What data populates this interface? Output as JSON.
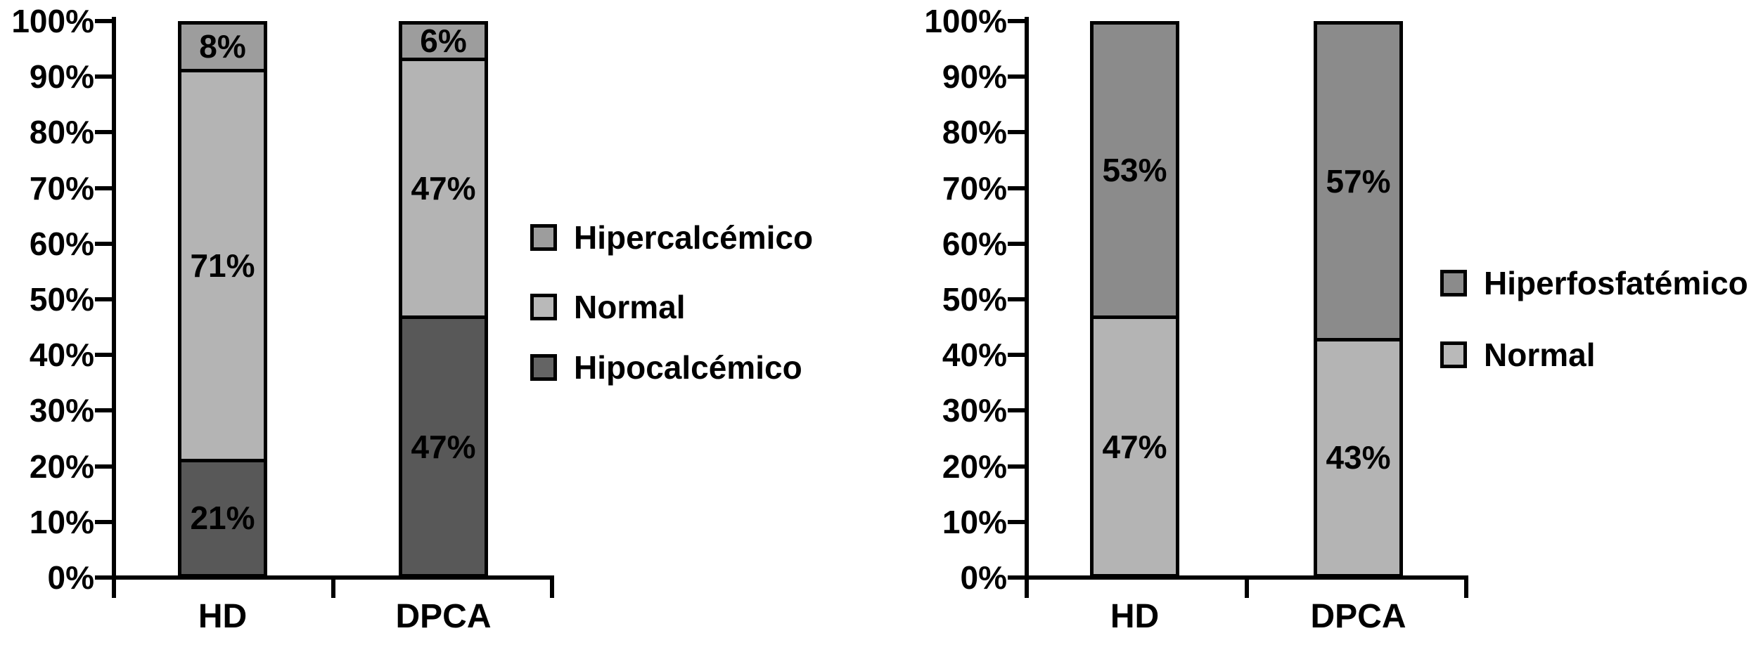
{
  "figure": {
    "background": "#ffffff",
    "description": "Two 100% stacked bar charts comparing HD and DPCA patients"
  },
  "chart_data": [
    {
      "type": "bar",
      "subtype": "stacked-100-percent",
      "title": "",
      "xlabel": "",
      "ylabel": "",
      "categories": [
        "HD",
        "DPCA"
      ],
      "stack_order": "bottom-to-top",
      "series": [
        {
          "name": "Hipocalcémico",
          "color": "#585858",
          "values": [
            21,
            47
          ],
          "labels": [
            "21%",
            "47%"
          ]
        },
        {
          "name": "Normal",
          "color": "#b4b4b4",
          "values": [
            71,
            47
          ],
          "labels": [
            "71%",
            "47%"
          ]
        },
        {
          "name": "Hipercalcémico",
          "color": "#9d9d9d",
          "values": [
            8,
            6
          ],
          "labels": [
            "8%",
            "6%"
          ]
        }
      ],
      "y_axis": {
        "min": 0,
        "max": 100,
        "tick_labels": [
          "0%",
          "10%",
          "20%",
          "30%",
          "40%",
          "50%",
          "60%",
          "70%",
          "80%",
          "90%",
          "100%"
        ]
      },
      "grid": false,
      "legend": {
        "position": "right",
        "entries": [
          {
            "label": "Hipercalcémico",
            "color": "#9d9d9d"
          },
          {
            "label": "Normal",
            "color": "#b9b9b9"
          },
          {
            "label": "Hipocalcémico",
            "color": "#646464"
          }
        ]
      }
    },
    {
      "type": "bar",
      "subtype": "stacked-100-percent",
      "title": "",
      "xlabel": "",
      "ylabel": "",
      "categories": [
        "HD",
        "DPCA"
      ],
      "stack_order": "bottom-to-top",
      "series": [
        {
          "name": "Normal",
          "color": "#b4b4b4",
          "values": [
            47,
            43
          ],
          "labels": [
            "47%",
            "43%"
          ]
        },
        {
          "name": "Hiperfosfatémico",
          "color": "#8b8b8b",
          "values": [
            53,
            57
          ],
          "labels": [
            "53%",
            "57%"
          ]
        }
      ],
      "y_axis": {
        "min": 0,
        "max": 100,
        "tick_labels": [
          "0%",
          "10%",
          "20%",
          "30%",
          "40%",
          "50%",
          "60%",
          "70%",
          "80%",
          "90%",
          "100%"
        ]
      },
      "grid": false,
      "legend": {
        "position": "right",
        "entries": [
          {
            "label": "Hiperfosfatémico",
            "color": "#8b8b8b"
          },
          {
            "label": "Normal",
            "color": "#b9b9b9"
          }
        ]
      }
    }
  ]
}
